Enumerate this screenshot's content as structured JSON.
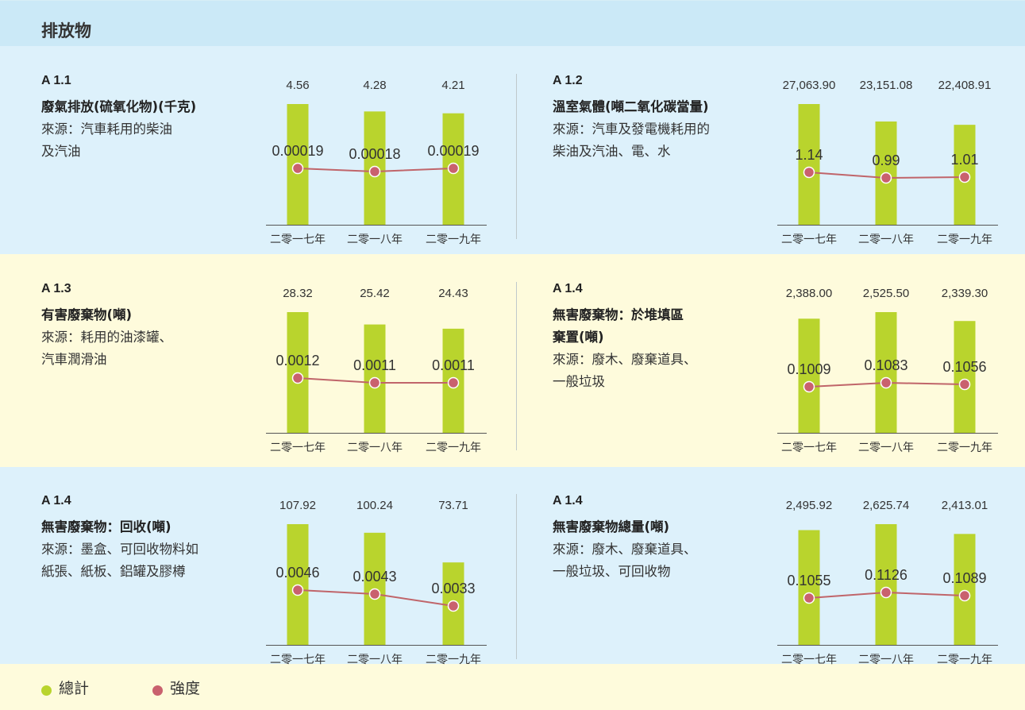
{
  "header": {
    "title": "排放物"
  },
  "colors": {
    "total": "#b9d42d",
    "intensity": "#c0656a",
    "marker": "#c9616e"
  },
  "legend": {
    "total": "總計",
    "intensity": "強度"
  },
  "chart_data": [
    {
      "type": "bar",
      "code": "A 1.1",
      "title": "廢氣排放(硫氧化物)(千克)",
      "source": "來源：汽車耗用的柴油\n及汽油",
      "categories": [
        "二零一七年",
        "二零一八年",
        "二零一九年"
      ],
      "series": [
        {
          "values": [
            4.56,
            4.28,
            4.21
          ]
        },
        {
          "values": [
            0.00019,
            0.00018,
            0.00019
          ]
        }
      ],
      "value_labels": [
        "4.56",
        "4.28",
        "4.21"
      ],
      "intensity_labels": [
        "0.00019",
        "0.00018",
        "0.00019"
      ]
    },
    {
      "type": "bar",
      "code": "A 1.2",
      "title": "溫室氣體(噸二氧化碳當量)",
      "source": "來源：汽車及發電機耗用的\n柴油及汽油、電、水",
      "categories": [
        "二零一七年",
        "二零一八年",
        "二零一九年"
      ],
      "series": [
        {
          "values": [
            27063.9,
            23151.08,
            22408.91
          ]
        },
        {
          "values": [
            1.14,
            0.99,
            1.01
          ]
        }
      ],
      "value_labels": [
        "27,063.90",
        "23,151.08",
        "22,408.91"
      ],
      "intensity_labels": [
        "1.14",
        "0.99",
        "1.01"
      ]
    },
    {
      "type": "bar",
      "code": "A 1.3",
      "title": "有害廢棄物(噸)",
      "source": "來源：耗用的油漆罐、\n汽車潤滑油",
      "categories": [
        "二零一七年",
        "二零一八年",
        "二零一九年"
      ],
      "series": [
        {
          "values": [
            28.32,
            25.42,
            24.43
          ]
        },
        {
          "values": [
            0.0012,
            0.0011,
            0.0011
          ]
        }
      ],
      "value_labels": [
        "28.32",
        "25.42",
        "24.43"
      ],
      "intensity_labels": [
        "0.0012",
        "0.0011",
        "0.0011"
      ]
    },
    {
      "type": "bar",
      "code": "A 1.4",
      "title": "無害廢棄物：於堆填區\n棄置(噸)",
      "source": "來源：廢木、廢棄道具、\n一般垃圾",
      "categories": [
        "二零一七年",
        "二零一八年",
        "二零一九年"
      ],
      "series": [
        {
          "values": [
            2388.0,
            2525.5,
            2339.3
          ]
        },
        {
          "values": [
            0.1009,
            0.1083,
            0.1056
          ]
        }
      ],
      "value_labels": [
        "2,388.00",
        "2,525.50",
        "2,339.30"
      ],
      "intensity_labels": [
        "0.1009",
        "0.1083",
        "0.1056"
      ]
    },
    {
      "type": "bar",
      "code": "A 1.4",
      "title": "無害廢棄物：回收(噸)",
      "source": "來源：墨盒、可回收物料如\n紙張、紙板、鋁罐及膠樽",
      "categories": [
        "二零一七年",
        "二零一八年",
        "二零一九年"
      ],
      "series": [
        {
          "values": [
            107.92,
            100.24,
            73.71
          ]
        },
        {
          "values": [
            0.0046,
            0.0043,
            0.0033
          ]
        }
      ],
      "value_labels": [
        "107.92",
        "100.24",
        "73.71"
      ],
      "intensity_labels": [
        "0.0046",
        "0.0043",
        "0.0033"
      ]
    },
    {
      "type": "bar",
      "code": "A 1.4",
      "title": "無害廢棄物總量(噸)",
      "source": "來源：廢木、廢棄道具、\n一般垃圾、可回收物",
      "categories": [
        "二零一七年",
        "二零一八年",
        "二零一九年"
      ],
      "series": [
        {
          "values": [
            2495.92,
            2625.74,
            2413.01
          ]
        },
        {
          "values": [
            0.1055,
            0.1126,
            0.1089
          ]
        }
      ],
      "value_labels": [
        "2,495.92",
        "2,625.74",
        "2,413.01"
      ],
      "intensity_labels": [
        "0.1055",
        "0.1126",
        "0.1089"
      ]
    }
  ]
}
